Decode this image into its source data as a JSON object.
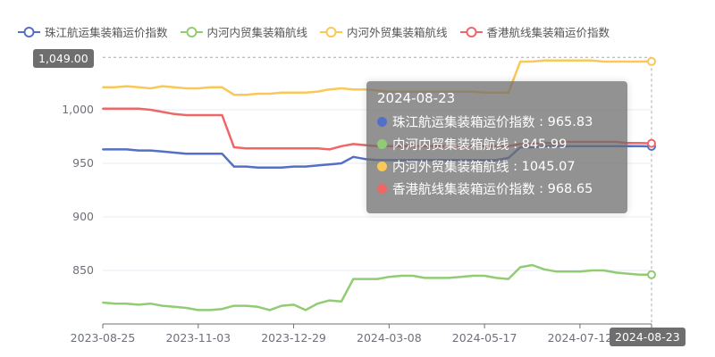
{
  "chart_data": {
    "type": "line",
    "title": "",
    "xlabel": "",
    "ylabel": "",
    "x_tick_labels": [
      "2023-08-25",
      "2023-11-03",
      "2023-12-29",
      "2024-03-08",
      "2024-05-17",
      "2024-07-12"
    ],
    "y_tick_labels": [
      "850",
      "900",
      "950",
      "1,000"
    ],
    "y_ticks": [
      850,
      900,
      950,
      1000
    ],
    "ylim": [
      800,
      1050
    ],
    "grid": true,
    "legend_position": "top",
    "series": [
      {
        "name": "珠江航运集装箱运价指数",
        "color": "#5470c6",
        "values": [
          963,
          963,
          963,
          962,
          962,
          961,
          960,
          959,
          959,
          959,
          959,
          947,
          947,
          946,
          946,
          946,
          947,
          947,
          948,
          949,
          950,
          956,
          954,
          953,
          953,
          953,
          953,
          953,
          953,
          953,
          953,
          953,
          953,
          953,
          955,
          965,
          965,
          966,
          966,
          966,
          966,
          966,
          966,
          966,
          966,
          966,
          965.83
        ]
      },
      {
        "name": "内河内贸集装箱航线",
        "color": "#91cc75",
        "values": [
          820,
          819,
          819,
          818,
          819,
          817,
          816,
          815,
          813,
          813,
          814,
          817,
          817,
          816,
          813,
          817,
          818,
          813,
          819,
          822,
          821,
          842,
          842,
          842,
          844,
          845,
          845,
          843,
          843,
          843,
          844,
          845,
          845,
          843,
          842,
          853,
          855,
          851,
          849,
          849,
          849,
          850,
          850,
          848,
          847,
          846,
          845.99
        ]
      },
      {
        "name": "内河外贸集装箱航线",
        "color": "#fac858",
        "values": [
          1021,
          1021,
          1022,
          1021,
          1020,
          1022,
          1021,
          1020,
          1020,
          1021,
          1021,
          1014,
          1014,
          1015,
          1015,
          1016,
          1016,
          1016,
          1017,
          1019,
          1020,
          1019,
          1019,
          1018,
          1017,
          1017,
          1017,
          1017,
          1017,
          1017,
          1017,
          1017,
          1016,
          1016,
          1016,
          1045,
          1045,
          1046,
          1046,
          1046,
          1046,
          1046,
          1045,
          1045,
          1045,
          1045,
          1045.07
        ]
      },
      {
        "name": "香港航线集装箱运价指数",
        "color": "#ee6666",
        "values": [
          1001,
          1001,
          1001,
          1001,
          1000,
          998,
          996,
          995,
          995,
          995,
          995,
          965,
          964,
          964,
          964,
          964,
          964,
          964,
          964,
          963,
          966,
          968,
          967,
          966,
          966,
          966,
          966,
          966,
          966,
          966,
          966,
          966,
          966,
          966,
          966,
          968,
          968,
          969,
          969,
          970,
          970,
          970,
          970,
          970,
          969,
          969,
          968.65
        ]
      }
    ],
    "axis_pointer": {
      "x_label": "2024-08-23",
      "y_label": "1,049.00"
    },
    "tooltip": {
      "title": "2024-08-23",
      "rows": [
        {
          "name": "珠江航运集装箱运价指数",
          "value": "965.83"
        },
        {
          "name": "内河内贸集装箱航线",
          "value": "845.99"
        },
        {
          "name": "内河外贸集装箱航线",
          "value": "1045.07"
        },
        {
          "name": "香港航线集装箱运价指数",
          "value": "968.65"
        }
      ]
    }
  }
}
